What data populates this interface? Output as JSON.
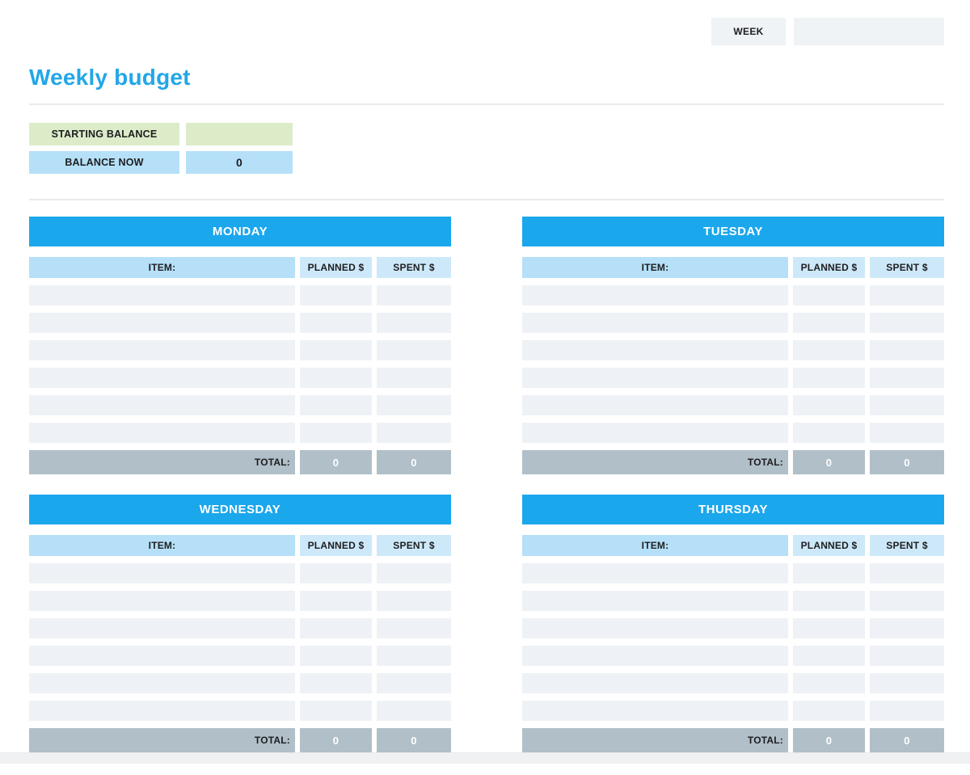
{
  "page": {
    "title": "Weekly budget",
    "week_label": "WEEK",
    "week_value": ""
  },
  "balance": {
    "starting_label": "STARTING BALANCE",
    "starting_value": "",
    "now_label": "BALANCE NOW",
    "now_value": "0"
  },
  "tables": {
    "columns": {
      "item": "ITEM:",
      "planned": "PLANNED $",
      "spent": "SPENT $"
    },
    "total_label": "TOTAL:",
    "rows_per_day": 6,
    "days": [
      {
        "name": "MONDAY",
        "total_planned": "0",
        "total_spent": "0"
      },
      {
        "name": "TUESDAY",
        "total_planned": "0",
        "total_spent": "0"
      },
      {
        "name": "WEDNESDAY",
        "total_planned": "0",
        "total_spent": "0"
      },
      {
        "name": "THURSDAY",
        "total_planned": "0",
        "total_spent": "0"
      }
    ]
  },
  "colors": {
    "accent_blue": "#1ba7ec",
    "title_blue": "#22a7e8",
    "light_blue": "#b5e0f8",
    "pale_blue": "#cde9f9",
    "green": "#dcecc9",
    "row_gray": "#eef2f6",
    "total_gray": "#b0bfc8",
    "week_cell_bg": "#eff3f6",
    "text_dark": "#1d1d1f"
  }
}
